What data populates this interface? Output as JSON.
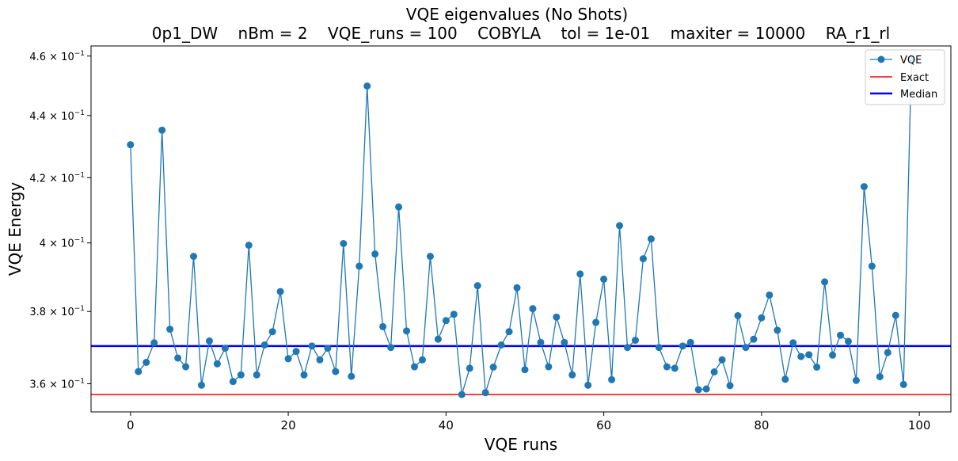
{
  "chart_data": {
    "type": "line",
    "title": "VQE eigenvalues (No Shots)",
    "subtitle": "0p1_DW    nBm = 2    VQE_runs = 100    COBYLA    tol = 1e-01    maxiter = 10000    RA_r1_rl",
    "xlabel": "VQE runs",
    "ylabel": "VQE Energy",
    "xlim": [
      -5,
      104
    ],
    "ylim": [
      0.3525,
      0.4635
    ],
    "yscale": "log",
    "x_ticks": [
      0,
      20,
      40,
      60,
      80,
      100
    ],
    "x_tick_labels": [
      "0",
      "20",
      "40",
      "60",
      "80",
      "100"
    ],
    "y_ticks": [
      0.36,
      0.38,
      0.4,
      0.42,
      0.44,
      0.46
    ],
    "y_tick_labels": [
      {
        "base": "3.6 × 10",
        "exp": "−1"
      },
      {
        "base": "3.8 × 10",
        "exp": "−1"
      },
      {
        "base": "4 × 10",
        "exp": "−1"
      },
      {
        "base": "4.2 × 10",
        "exp": "−1"
      },
      {
        "base": "4.4 × 10",
        "exp": "−1"
      },
      {
        "base": "4.6 × 10",
        "exp": "−1"
      }
    ],
    "grid": false,
    "legend_position": "top-right",
    "series": [
      {
        "name": "VQE",
        "color": "#1f77b4",
        "marker": "circle",
        "x": [
          0,
          1,
          2,
          3,
          4,
          5,
          6,
          7,
          8,
          9,
          10,
          11,
          12,
          13,
          14,
          15,
          16,
          17,
          18,
          19,
          20,
          21,
          22,
          23,
          24,
          25,
          26,
          27,
          28,
          29,
          30,
          31,
          32,
          33,
          34,
          35,
          36,
          37,
          38,
          39,
          40,
          41,
          42,
          43,
          44,
          45,
          46,
          47,
          48,
          49,
          50,
          51,
          52,
          53,
          54,
          55,
          56,
          57,
          58,
          59,
          60,
          61,
          62,
          63,
          64,
          65,
          66,
          67,
          68,
          69,
          70,
          71,
          72,
          73,
          74,
          75,
          76,
          77,
          78,
          79,
          80,
          81,
          82,
          83,
          84,
          85,
          86,
          87,
          88,
          89,
          90,
          91,
          92,
          93,
          94,
          95,
          96,
          97,
          98,
          99
        ],
        "values": [
          0.4305,
          0.3633,
          0.3658,
          0.3712,
          0.4352,
          0.375,
          0.367,
          0.3646,
          0.396,
          0.3596,
          0.3717,
          0.3654,
          0.3697,
          0.3606,
          0.3624,
          0.3993,
          0.3624,
          0.3706,
          0.3743,
          0.3857,
          0.3668,
          0.3688,
          0.3624,
          0.3703,
          0.3665,
          0.3697,
          0.3633,
          0.3998,
          0.362,
          0.3931,
          0.4498,
          0.3967,
          0.3757,
          0.3699,
          0.4109,
          0.3745,
          0.3646,
          0.3665,
          0.396,
          0.3722,
          0.3774,
          0.3792,
          0.3571,
          0.3642,
          0.3874,
          0.3576,
          0.3645,
          0.3706,
          0.3743,
          0.3868,
          0.3638,
          0.3808,
          0.3713,
          0.3646,
          0.3784,
          0.3713,
          0.3624,
          0.3908,
          0.3596,
          0.3769,
          0.3893,
          0.3611,
          0.4052,
          0.3699,
          0.3719,
          0.3953,
          0.4012,
          0.3699,
          0.3646,
          0.3642,
          0.3703,
          0.3713,
          0.3584,
          0.3586,
          0.3632,
          0.3665,
          0.3595,
          0.3788,
          0.3699,
          0.3722,
          0.3782,
          0.3847,
          0.3747,
          0.3612,
          0.3712,
          0.3674,
          0.3679,
          0.3645,
          0.3885,
          0.3678,
          0.3733,
          0.3716,
          0.3609,
          0.4172,
          0.3931,
          0.3619,
          0.3685,
          0.3789,
          0.3598,
          0.4592
        ]
      },
      {
        "name": "Exact",
        "color": "#ff0000",
        "value": 0.3571
      },
      {
        "name": "Median",
        "color": "#0000ff",
        "value": 0.3703
      }
    ]
  }
}
